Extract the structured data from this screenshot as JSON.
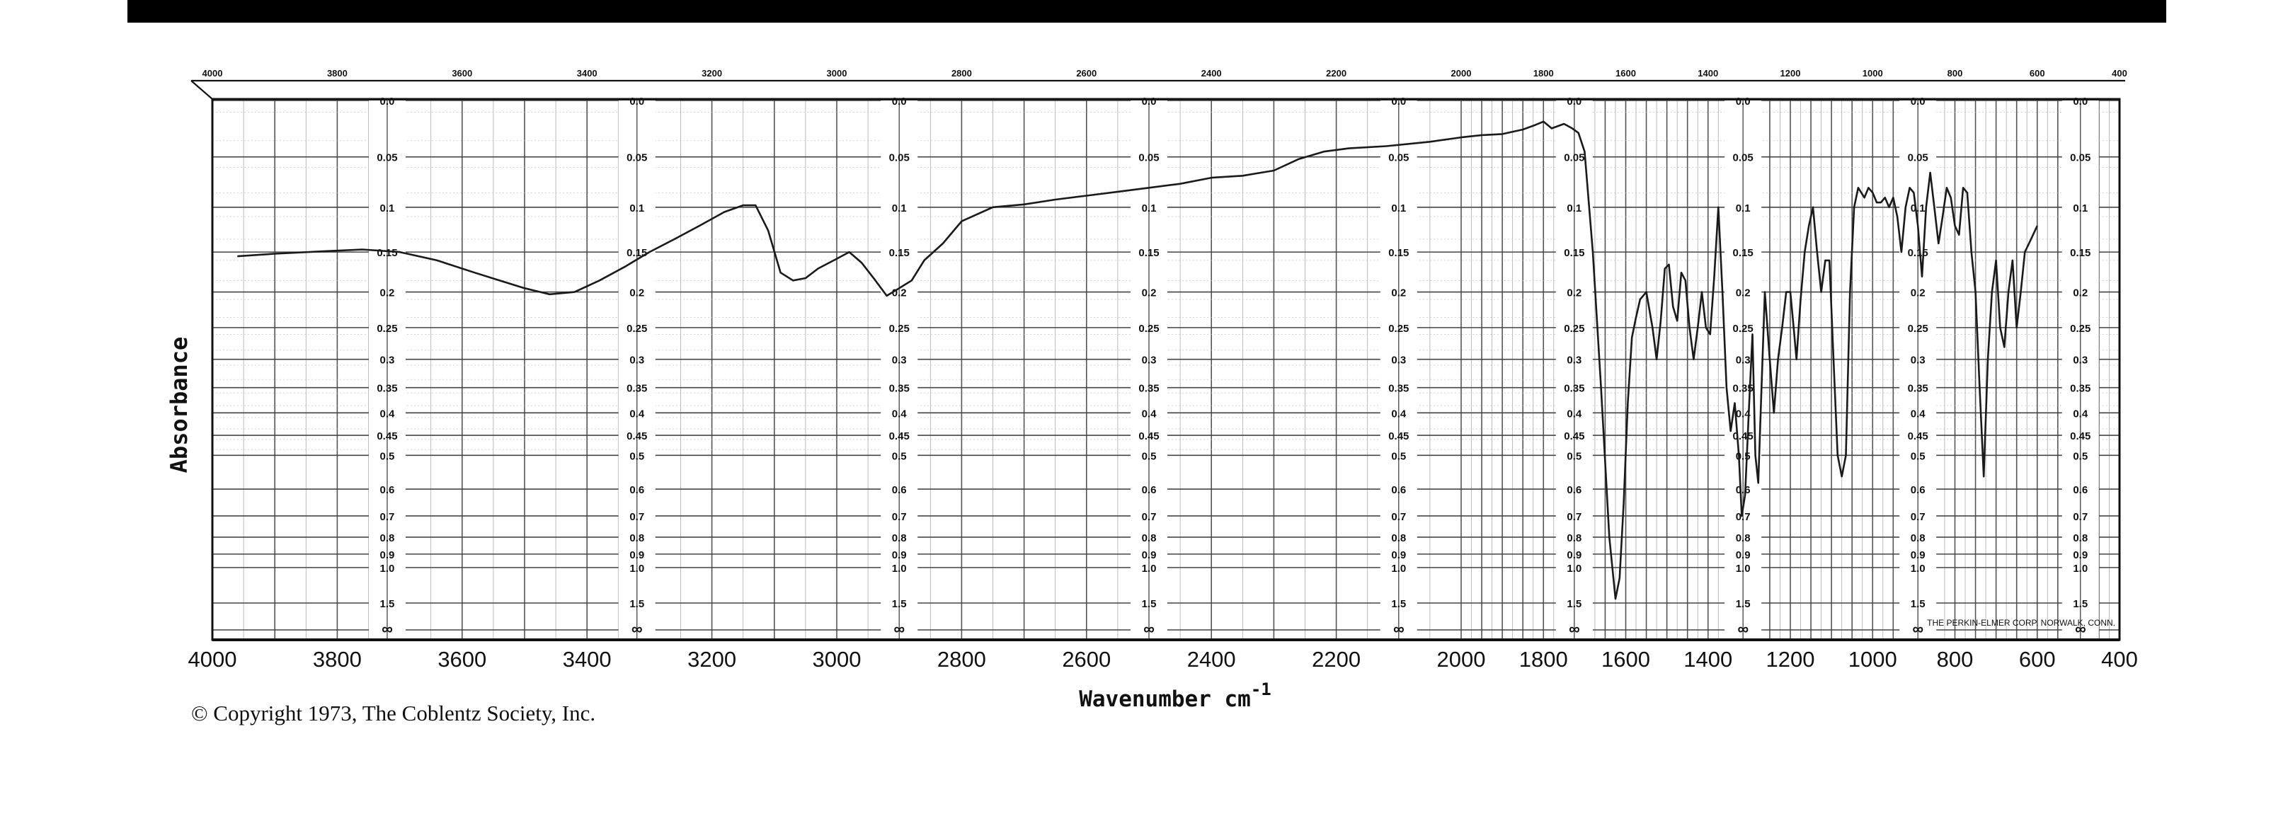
{
  "chart_data": {
    "type": "line",
    "title": "",
    "xlabel": "Wavenumber cm-1",
    "xlabel_base": "Wavenumber cm",
    "xlabel_sup": "-1",
    "ylabel": "Absorbance",
    "x_reversed": true,
    "xlim": [
      4000,
      400
    ],
    "x_segments": [
      {
        "from": 4000,
        "to": 2000
      },
      {
        "from": 2000,
        "to": 400
      }
    ],
    "y_scale": "absorbance (logarithmic transmittance)",
    "ylim": [
      0.0,
      "∞"
    ],
    "grid": true,
    "legend": "none",
    "x_ticks_bottom": [
      "4000",
      "3800",
      "3600",
      "3400",
      "3200",
      "3000",
      "2800",
      "2600",
      "2400",
      "2200",
      "2000",
      "1800",
      "1600",
      "1400",
      "1200",
      "1000",
      "800",
      "600",
      "400"
    ],
    "x_ticks_top": [
      "4000",
      "3800",
      "3600",
      "3400",
      "3200",
      "3000",
      "2800",
      "2600",
      "2400",
      "2200",
      "2000",
      "1800",
      "1600",
      "1400",
      "1200",
      "1000",
      "800",
      "600",
      "400"
    ],
    "y_ticks": [
      "0.0",
      "0.05",
      "0.1",
      "0.15",
      "0.2",
      "0.25",
      "0.3",
      "0.35",
      "0.4",
      "0.45",
      "0.5",
      "0.6",
      "0.7",
      "0.8",
      "0.9",
      "1.0",
      "1.5",
      "∞"
    ],
    "y_tick_values": [
      0.0,
      0.05,
      0.1,
      0.15,
      0.2,
      0.25,
      0.3,
      0.35,
      0.4,
      0.45,
      0.5,
      0.6,
      0.7,
      0.8,
      0.9,
      1.0,
      1.5,
      "∞"
    ],
    "series": [
      {
        "color": "#1a1a1a",
        "points": [
          [
            3960,
            0.155
          ],
          [
            3900,
            0.152
          ],
          [
            3820,
            0.149
          ],
          [
            3760,
            0.147
          ],
          [
            3700,
            0.15
          ],
          [
            3640,
            0.16
          ],
          [
            3580,
            0.175
          ],
          [
            3540,
            0.185
          ],
          [
            3500,
            0.195
          ],
          [
            3460,
            0.203
          ],
          [
            3420,
            0.2
          ],
          [
            3380,
            0.185
          ],
          [
            3340,
            0.168
          ],
          [
            3300,
            0.15
          ],
          [
            3260,
            0.135
          ],
          [
            3220,
            0.12
          ],
          [
            3180,
            0.105
          ],
          [
            3150,
            0.098
          ],
          [
            3130,
            0.098
          ],
          [
            3110,
            0.125
          ],
          [
            3090,
            0.175
          ],
          [
            3070,
            0.185
          ],
          [
            3050,
            0.182
          ],
          [
            3030,
            0.17
          ],
          [
            3000,
            0.158
          ],
          [
            2980,
            0.15
          ],
          [
            2960,
            0.163
          ],
          [
            2940,
            0.183
          ],
          [
            2920,
            0.205
          ],
          [
            2900,
            0.195
          ],
          [
            2880,
            0.185
          ],
          [
            2860,
            0.16
          ],
          [
            2830,
            0.14
          ],
          [
            2800,
            0.115
          ],
          [
            2750,
            0.1
          ],
          [
            2700,
            0.097
          ],
          [
            2650,
            0.092
          ],
          [
            2600,
            0.088
          ],
          [
            2550,
            0.084
          ],
          [
            2500,
            0.08
          ],
          [
            2450,
            0.076
          ],
          [
            2400,
            0.07
          ],
          [
            2350,
            0.068
          ],
          [
            2320,
            0.065
          ],
          [
            2300,
            0.063
          ],
          [
            2260,
            0.052
          ],
          [
            2220,
            0.045
          ],
          [
            2180,
            0.042
          ],
          [
            2120,
            0.04
          ],
          [
            2050,
            0.036
          ],
          [
            2000,
            0.032
          ],
          [
            1950,
            0.03
          ],
          [
            1900,
            0.029
          ],
          [
            1850,
            0.025
          ],
          [
            1820,
            0.021
          ],
          [
            1800,
            0.018
          ],
          [
            1780,
            0.024
          ],
          [
            1750,
            0.02
          ],
          [
            1730,
            0.024
          ],
          [
            1715,
            0.028
          ],
          [
            1700,
            0.045
          ],
          [
            1680,
            0.15
          ],
          [
            1660,
            0.35
          ],
          [
            1640,
            0.8
          ],
          [
            1625,
            1.4
          ],
          [
            1615,
            1.1
          ],
          [
            1605,
            0.65
          ],
          [
            1595,
            0.38
          ],
          [
            1585,
            0.265
          ],
          [
            1575,
            0.235
          ],
          [
            1565,
            0.21
          ],
          [
            1550,
            0.2
          ],
          [
            1535,
            0.25
          ],
          [
            1525,
            0.3
          ],
          [
            1515,
            0.24
          ],
          [
            1505,
            0.17
          ],
          [
            1495,
            0.165
          ],
          [
            1485,
            0.22
          ],
          [
            1475,
            0.24
          ],
          [
            1465,
            0.175
          ],
          [
            1455,
            0.185
          ],
          [
            1445,
            0.25
          ],
          [
            1435,
            0.3
          ],
          [
            1425,
            0.25
          ],
          [
            1415,
            0.2
          ],
          [
            1405,
            0.25
          ],
          [
            1395,
            0.26
          ],
          [
            1385,
            0.18
          ],
          [
            1375,
            0.1
          ],
          [
            1365,
            0.2
          ],
          [
            1355,
            0.35
          ],
          [
            1345,
            0.44
          ],
          [
            1335,
            0.38
          ],
          [
            1325,
            0.5
          ],
          [
            1318,
            0.7
          ],
          [
            1310,
            0.62
          ],
          [
            1300,
            0.38
          ],
          [
            1292,
            0.26
          ],
          [
            1285,
            0.5
          ],
          [
            1278,
            0.58
          ],
          [
            1270,
            0.35
          ],
          [
            1262,
            0.2
          ],
          [
            1250,
            0.3
          ],
          [
            1240,
            0.4
          ],
          [
            1230,
            0.3
          ],
          [
            1220,
            0.25
          ],
          [
            1210,
            0.2
          ],
          [
            1200,
            0.2
          ],
          [
            1192,
            0.25
          ],
          [
            1185,
            0.3
          ],
          [
            1175,
            0.21
          ],
          [
            1165,
            0.15
          ],
          [
            1155,
            0.12
          ],
          [
            1145,
            0.1
          ],
          [
            1135,
            0.15
          ],
          [
            1125,
            0.2
          ],
          [
            1115,
            0.16
          ],
          [
            1105,
            0.16
          ],
          [
            1095,
            0.3
          ],
          [
            1085,
            0.5
          ],
          [
            1075,
            0.56
          ],
          [
            1065,
            0.5
          ],
          [
            1055,
            0.2
          ],
          [
            1045,
            0.1
          ],
          [
            1035,
            0.08
          ],
          [
            1020,
            0.09
          ],
          [
            1010,
            0.08
          ],
          [
            1000,
            0.085
          ],
          [
            990,
            0.095
          ],
          [
            980,
            0.095
          ],
          [
            970,
            0.09
          ],
          [
            960,
            0.1
          ],
          [
            950,
            0.09
          ],
          [
            940,
            0.11
          ],
          [
            930,
            0.15
          ],
          [
            920,
            0.1
          ],
          [
            910,
            0.08
          ],
          [
            900,
            0.085
          ],
          [
            890,
            0.12
          ],
          [
            880,
            0.18
          ],
          [
            870,
            0.1
          ],
          [
            860,
            0.065
          ],
          [
            850,
            0.1
          ],
          [
            840,
            0.14
          ],
          [
            830,
            0.11
          ],
          [
            820,
            0.08
          ],
          [
            810,
            0.09
          ],
          [
            800,
            0.12
          ],
          [
            790,
            0.13
          ],
          [
            780,
            0.08
          ],
          [
            770,
            0.085
          ],
          [
            760,
            0.15
          ],
          [
            750,
            0.2
          ],
          [
            740,
            0.35
          ],
          [
            730,
            0.56
          ],
          [
            720,
            0.3
          ],
          [
            710,
            0.2
          ],
          [
            700,
            0.16
          ],
          [
            690,
            0.25
          ],
          [
            680,
            0.28
          ],
          [
            670,
            0.2
          ],
          [
            660,
            0.16
          ],
          [
            650,
            0.25
          ],
          [
            640,
            0.2
          ],
          [
            630,
            0.15
          ],
          [
            620,
            0.14
          ],
          [
            610,
            0.13
          ],
          [
            600,
            0.12
          ]
        ]
      }
    ],
    "annotations": [
      "THE PERKIN-ELMER CORP. NORWALK, CONN."
    ]
  },
  "copyright": "© Copyright 1973, The Coblentz Society, Inc."
}
